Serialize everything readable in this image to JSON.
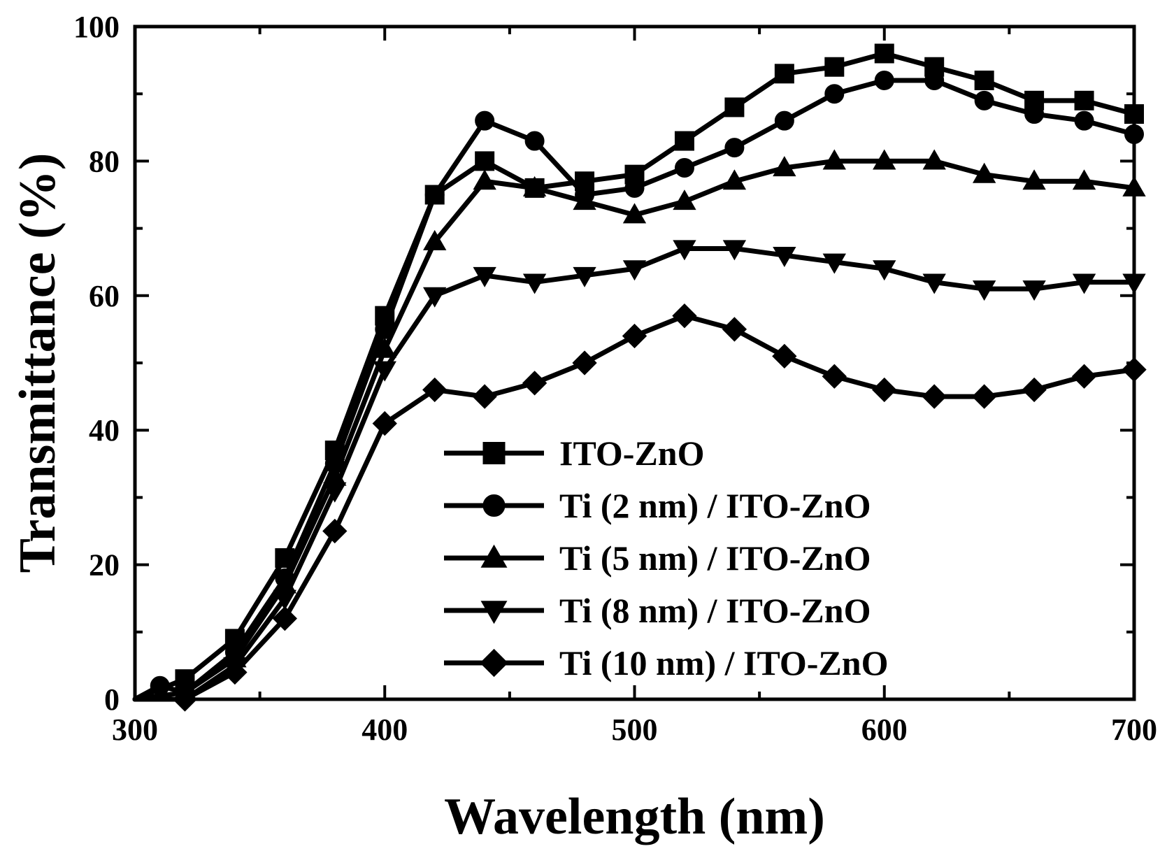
{
  "chart_data": {
    "type": "line",
    "title": "",
    "xlabel": "Wavelength (nm)",
    "ylabel": "Transmittance (%)",
    "xlim": [
      300,
      700
    ],
    "ylim": [
      0,
      100
    ],
    "xticks": [
      300,
      400,
      500,
      600,
      700
    ],
    "yticks": [
      0,
      20,
      40,
      60,
      80,
      100
    ],
    "legend_position": "lower-center",
    "grid": false,
    "line_color": "#000000",
    "series": [
      {
        "name": "ITO-ZnO",
        "marker": "square",
        "x": [
          300,
          320,
          340,
          360,
          380,
          400,
          420,
          440,
          460,
          480,
          500,
          520,
          540,
          560,
          580,
          600,
          620,
          640,
          660,
          680,
          700
        ],
        "y": [
          0,
          3,
          9,
          21,
          37,
          57,
          75,
          80,
          76,
          77,
          78,
          83,
          88,
          93,
          94,
          96,
          94,
          92,
          89,
          89,
          87
        ]
      },
      {
        "name": "Ti (2 nm) / ITO-ZnO",
        "marker": "circle",
        "x": [
          300,
          310,
          320,
          340,
          360,
          380,
          400,
          420,
          440,
          460,
          480,
          500,
          520,
          540,
          560,
          580,
          600,
          620,
          640,
          660,
          680,
          700
        ],
        "y": [
          0,
          2,
          1,
          7,
          18,
          35,
          55,
          75,
          86,
          83,
          75,
          76,
          79,
          82,
          86,
          90,
          92,
          92,
          89,
          87,
          86,
          84
        ]
      },
      {
        "name": "Ti (5 nm) / ITO-ZnO",
        "marker": "triangle-up",
        "x": [
          300,
          320,
          340,
          360,
          380,
          400,
          420,
          440,
          460,
          480,
          500,
          520,
          540,
          560,
          580,
          600,
          620,
          640,
          660,
          680,
          700
        ],
        "y": [
          0,
          1,
          6,
          17,
          33,
          52,
          68,
          77,
          76,
          74,
          72,
          74,
          77,
          79,
          80,
          80,
          80,
          78,
          77,
          77,
          76
        ]
      },
      {
        "name": "Ti (8 nm) / ITO-ZnO",
        "marker": "triangle-down",
        "x": [
          300,
          320,
          340,
          360,
          380,
          400,
          420,
          440,
          460,
          480,
          500,
          520,
          540,
          560,
          580,
          600,
          620,
          640,
          660,
          680,
          700
        ],
        "y": [
          0,
          0,
          5,
          15,
          31,
          49,
          60,
          63,
          62,
          63,
          64,
          67,
          67,
          66,
          65,
          64,
          62,
          61,
          61,
          62,
          62
        ]
      },
      {
        "name": "Ti (10 nm) / ITO-ZnO",
        "marker": "diamond",
        "x": [
          300,
          320,
          340,
          360,
          380,
          400,
          420,
          440,
          460,
          480,
          500,
          520,
          540,
          560,
          580,
          600,
          620,
          640,
          660,
          680,
          700
        ],
        "y": [
          0,
          0,
          4,
          12,
          25,
          41,
          46,
          45,
          47,
          50,
          54,
          57,
          55,
          51,
          48,
          46,
          45,
          45,
          46,
          48,
          49
        ]
      }
    ]
  }
}
